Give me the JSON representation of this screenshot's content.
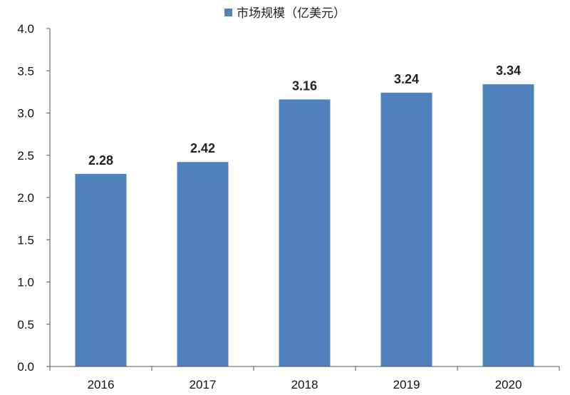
{
  "chart_data": {
    "type": "bar",
    "title": "",
    "xlabel": "",
    "ylabel": "",
    "categories": [
      "2016",
      "2017",
      "2018",
      "2019",
      "2020"
    ],
    "series": [
      {
        "name": "市场规模（亿美元）",
        "values": [
          2.28,
          2.42,
          3.16,
          3.24,
          3.34
        ]
      }
    ],
    "data_labels": [
      "2.28",
      "2.42",
      "3.16",
      "3.24",
      "3.34"
    ],
    "ylim": [
      0,
      4.0
    ],
    "yticks": [
      "0.0",
      "0.5",
      "1.0",
      "1.5",
      "2.0",
      "2.5",
      "3.0",
      "3.5",
      "4.0"
    ],
    "grid": false,
    "legend_position": "top-center",
    "bar_color": "#4F81BD"
  }
}
